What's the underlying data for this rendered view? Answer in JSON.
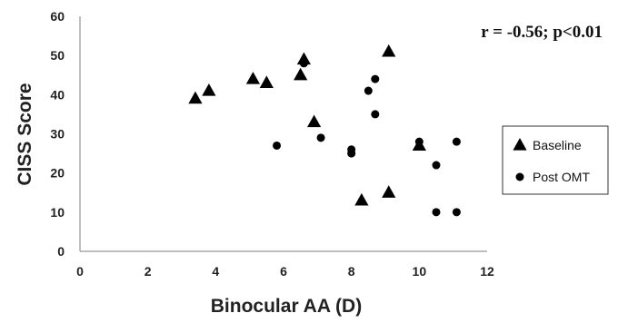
{
  "chart_data": {
    "type": "scatter",
    "xlabel": "Binocular AA (D)",
    "ylabel": "CISS Score",
    "xlim": [
      0,
      12
    ],
    "ylim": [
      0,
      60
    ],
    "xticks": [
      0,
      2,
      4,
      6,
      8,
      10,
      12
    ],
    "yticks": [
      0,
      10,
      20,
      30,
      40,
      50,
      60
    ],
    "grid": false,
    "annotation": "r = -0.56; p<0.01",
    "legend_position": "right",
    "series": [
      {
        "name": "Baseline",
        "marker": "triangle",
        "color": "#000000",
        "points": [
          {
            "x": 3.4,
            "y": 39
          },
          {
            "x": 3.8,
            "y": 41
          },
          {
            "x": 5.1,
            "y": 44
          },
          {
            "x": 5.5,
            "y": 43
          },
          {
            "x": 6.5,
            "y": 45
          },
          {
            "x": 6.6,
            "y": 49
          },
          {
            "x": 6.9,
            "y": 33
          },
          {
            "x": 8.3,
            "y": 13
          },
          {
            "x": 9.1,
            "y": 15
          },
          {
            "x": 9.1,
            "y": 51
          },
          {
            "x": 10.0,
            "y": 27
          }
        ]
      },
      {
        "name": "Post OMT",
        "marker": "circle",
        "color": "#000000",
        "points": [
          {
            "x": 5.8,
            "y": 27
          },
          {
            "x": 6.6,
            "y": 48
          },
          {
            "x": 7.1,
            "y": 29
          },
          {
            "x": 8.0,
            "y": 25
          },
          {
            "x": 8.0,
            "y": 26
          },
          {
            "x": 8.5,
            "y": 41
          },
          {
            "x": 8.7,
            "y": 44
          },
          {
            "x": 8.7,
            "y": 35
          },
          {
            "x": 10.0,
            "y": 28
          },
          {
            "x": 10.5,
            "y": 22
          },
          {
            "x": 10.5,
            "y": 10
          },
          {
            "x": 11.1,
            "y": 28
          },
          {
            "x": 11.1,
            "y": 10
          }
        ]
      }
    ]
  }
}
